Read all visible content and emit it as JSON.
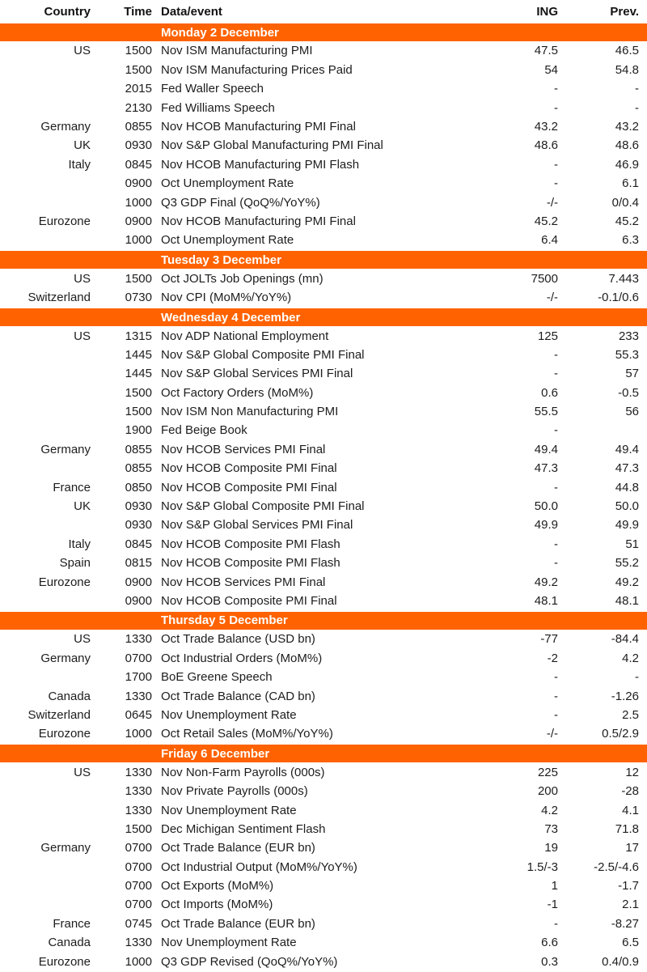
{
  "colors": {
    "accent": "#ff6200",
    "text": "#1d1d1d",
    "background": "#ffffff"
  },
  "table": {
    "headers": {
      "country": "Country",
      "time": "Time",
      "event": "Data/event",
      "ing": "ING",
      "prev": "Prev."
    },
    "sections": [
      {
        "title": "Monday 2 December",
        "rows": [
          [
            "US",
            "1500",
            "Nov ISM Manufacturing PMI",
            "47.5",
            "46.5"
          ],
          [
            "",
            "1500",
            "Nov ISM Manufacturing Prices Paid",
            "54",
            "54.8"
          ],
          [
            "",
            "2015",
            "Fed Waller Speech",
            "-",
            "-"
          ],
          [
            "",
            "2130",
            "Fed Williams Speech",
            "-",
            "-"
          ],
          [
            "Germany",
            "0855",
            "Nov HCOB Manufacturing PMI Final",
            "43.2",
            "43.2"
          ],
          [
            "UK",
            "0930",
            "Nov S&P Global Manufacturing PMI Final",
            "48.6",
            "48.6"
          ],
          [
            "Italy",
            "0845",
            "Nov HCOB Manufacturing PMI Flash",
            "-",
            "46.9"
          ],
          [
            "",
            "0900",
            "Oct Unemployment Rate",
            "-",
            "6.1"
          ],
          [
            "",
            "1000",
            "Q3 GDP Final (QoQ%/YoY%)",
            "-/-",
            "0/0.4"
          ],
          [
            "Eurozone",
            "0900",
            "Nov HCOB Manufacturing PMI Final",
            "45.2",
            "45.2"
          ],
          [
            "",
            "1000",
            "Oct Unemployment Rate",
            "6.4",
            "6.3"
          ]
        ]
      },
      {
        "title": "Tuesday 3 December",
        "rows": [
          [
            "US",
            "1500",
            "Oct JOLTs Job Openings (mn)",
            "7500",
            "7.443"
          ],
          [
            "Switzerland",
            "0730",
            "Nov CPI (MoM%/YoY%)",
            "-/-",
            "-0.1/0.6"
          ]
        ]
      },
      {
        "title": "Wednesday 4 December",
        "rows": [
          [
            "US",
            "1315",
            "Nov ADP National Employment",
            "125",
            "233"
          ],
          [
            "",
            "1445",
            "Nov S&P Global Composite PMI Final",
            "-",
            "55.3"
          ],
          [
            "",
            "1445",
            "Nov S&P Global Services PMI Final",
            "-",
            "57"
          ],
          [
            "",
            "1500",
            "Oct Factory Orders (MoM%)",
            "0.6",
            "-0.5"
          ],
          [
            "",
            "1500",
            "Nov ISM Non Manufacturing PMI",
            "55.5",
            "56"
          ],
          [
            "",
            "1900",
            "Fed Beige Book",
            "-",
            ""
          ],
          [
            "Germany",
            "0855",
            "Nov HCOB Services PMI Final",
            "49.4",
            "49.4"
          ],
          [
            "",
            "0855",
            "Nov HCOB Composite PMI Final",
            "47.3",
            "47.3"
          ],
          [
            "France",
            "0850",
            "Nov HCOB Composite PMI Final",
            "-",
            "44.8"
          ],
          [
            "UK",
            "0930",
            "Nov S&P Global Composite PMI Final",
            "50.0",
            "50.0"
          ],
          [
            "",
            "0930",
            "Nov S&P Global Services PMI Final",
            "49.9",
            "49.9"
          ],
          [
            "Italy",
            "0845",
            "Nov HCOB Composite PMI Flash",
            "-",
            "51"
          ],
          [
            "Spain",
            "0815",
            "Nov HCOB Composite PMI Flash",
            "-",
            "55.2"
          ],
          [
            "Eurozone",
            "0900",
            "Nov HCOB Services PMI Final",
            "49.2",
            "49.2"
          ],
          [
            "",
            "0900",
            "Nov HCOB Composite PMI Final",
            "48.1",
            "48.1"
          ]
        ]
      },
      {
        "title": "Thursday 5 December",
        "rows": [
          [
            "US",
            "1330",
            "Oct Trade Balance (USD bn)",
            "-77",
            "-84.4"
          ],
          [
            "Germany",
            "0700",
            "Oct Industrial Orders (MoM%)",
            "-2",
            "4.2"
          ],
          [
            "",
            "1700",
            "BoE Greene Speech",
            "-",
            "-"
          ],
          [
            "Canada",
            "1330",
            "Oct Trade Balance (CAD bn)",
            "-",
            "-1.26"
          ],
          [
            "Switzerland",
            "0645",
            "Nov Unemployment Rate",
            "-",
            "2.5"
          ],
          [
            "Eurozone",
            "1000",
            "Oct Retail Sales (MoM%/YoY%)",
            "-/-",
            "0.5/2.9"
          ]
        ]
      },
      {
        "title": "Friday 6 December",
        "rows": [
          [
            "US",
            "1330",
            "Nov Non-Farm Payrolls (000s)",
            "225",
            "12"
          ],
          [
            "",
            "1330",
            "Nov Private Payrolls (000s)",
            "200",
            "-28"
          ],
          [
            "",
            "1330",
            "Nov Unemployment Rate",
            "4.2",
            "4.1"
          ],
          [
            "",
            "1500",
            "Dec Michigan Sentiment Flash",
            "73",
            "71.8"
          ],
          [
            "Germany",
            "0700",
            "Oct Trade Balance (EUR bn)",
            "19",
            "17"
          ],
          [
            "",
            "0700",
            "Oct Industrial Output (MoM%/YoY%)",
            "1.5/-3",
            "-2.5/-4.6"
          ],
          [
            "",
            "0700",
            "Oct Exports (MoM%)",
            "1",
            "-1.7"
          ],
          [
            "",
            "0700",
            "Oct Imports (MoM%)",
            "-1",
            "2.1"
          ],
          [
            "France",
            "0745",
            "Oct Trade Balance (EUR bn)",
            "-",
            "-8.27"
          ],
          [
            "Canada",
            "1330",
            "Nov Unemployment Rate",
            "6.6",
            "6.5"
          ],
          [
            "Eurozone",
            "1000",
            "Q3 GDP Revised (QoQ%/YoY%)",
            "0.3",
            "0.4/0.9"
          ]
        ]
      }
    ]
  }
}
